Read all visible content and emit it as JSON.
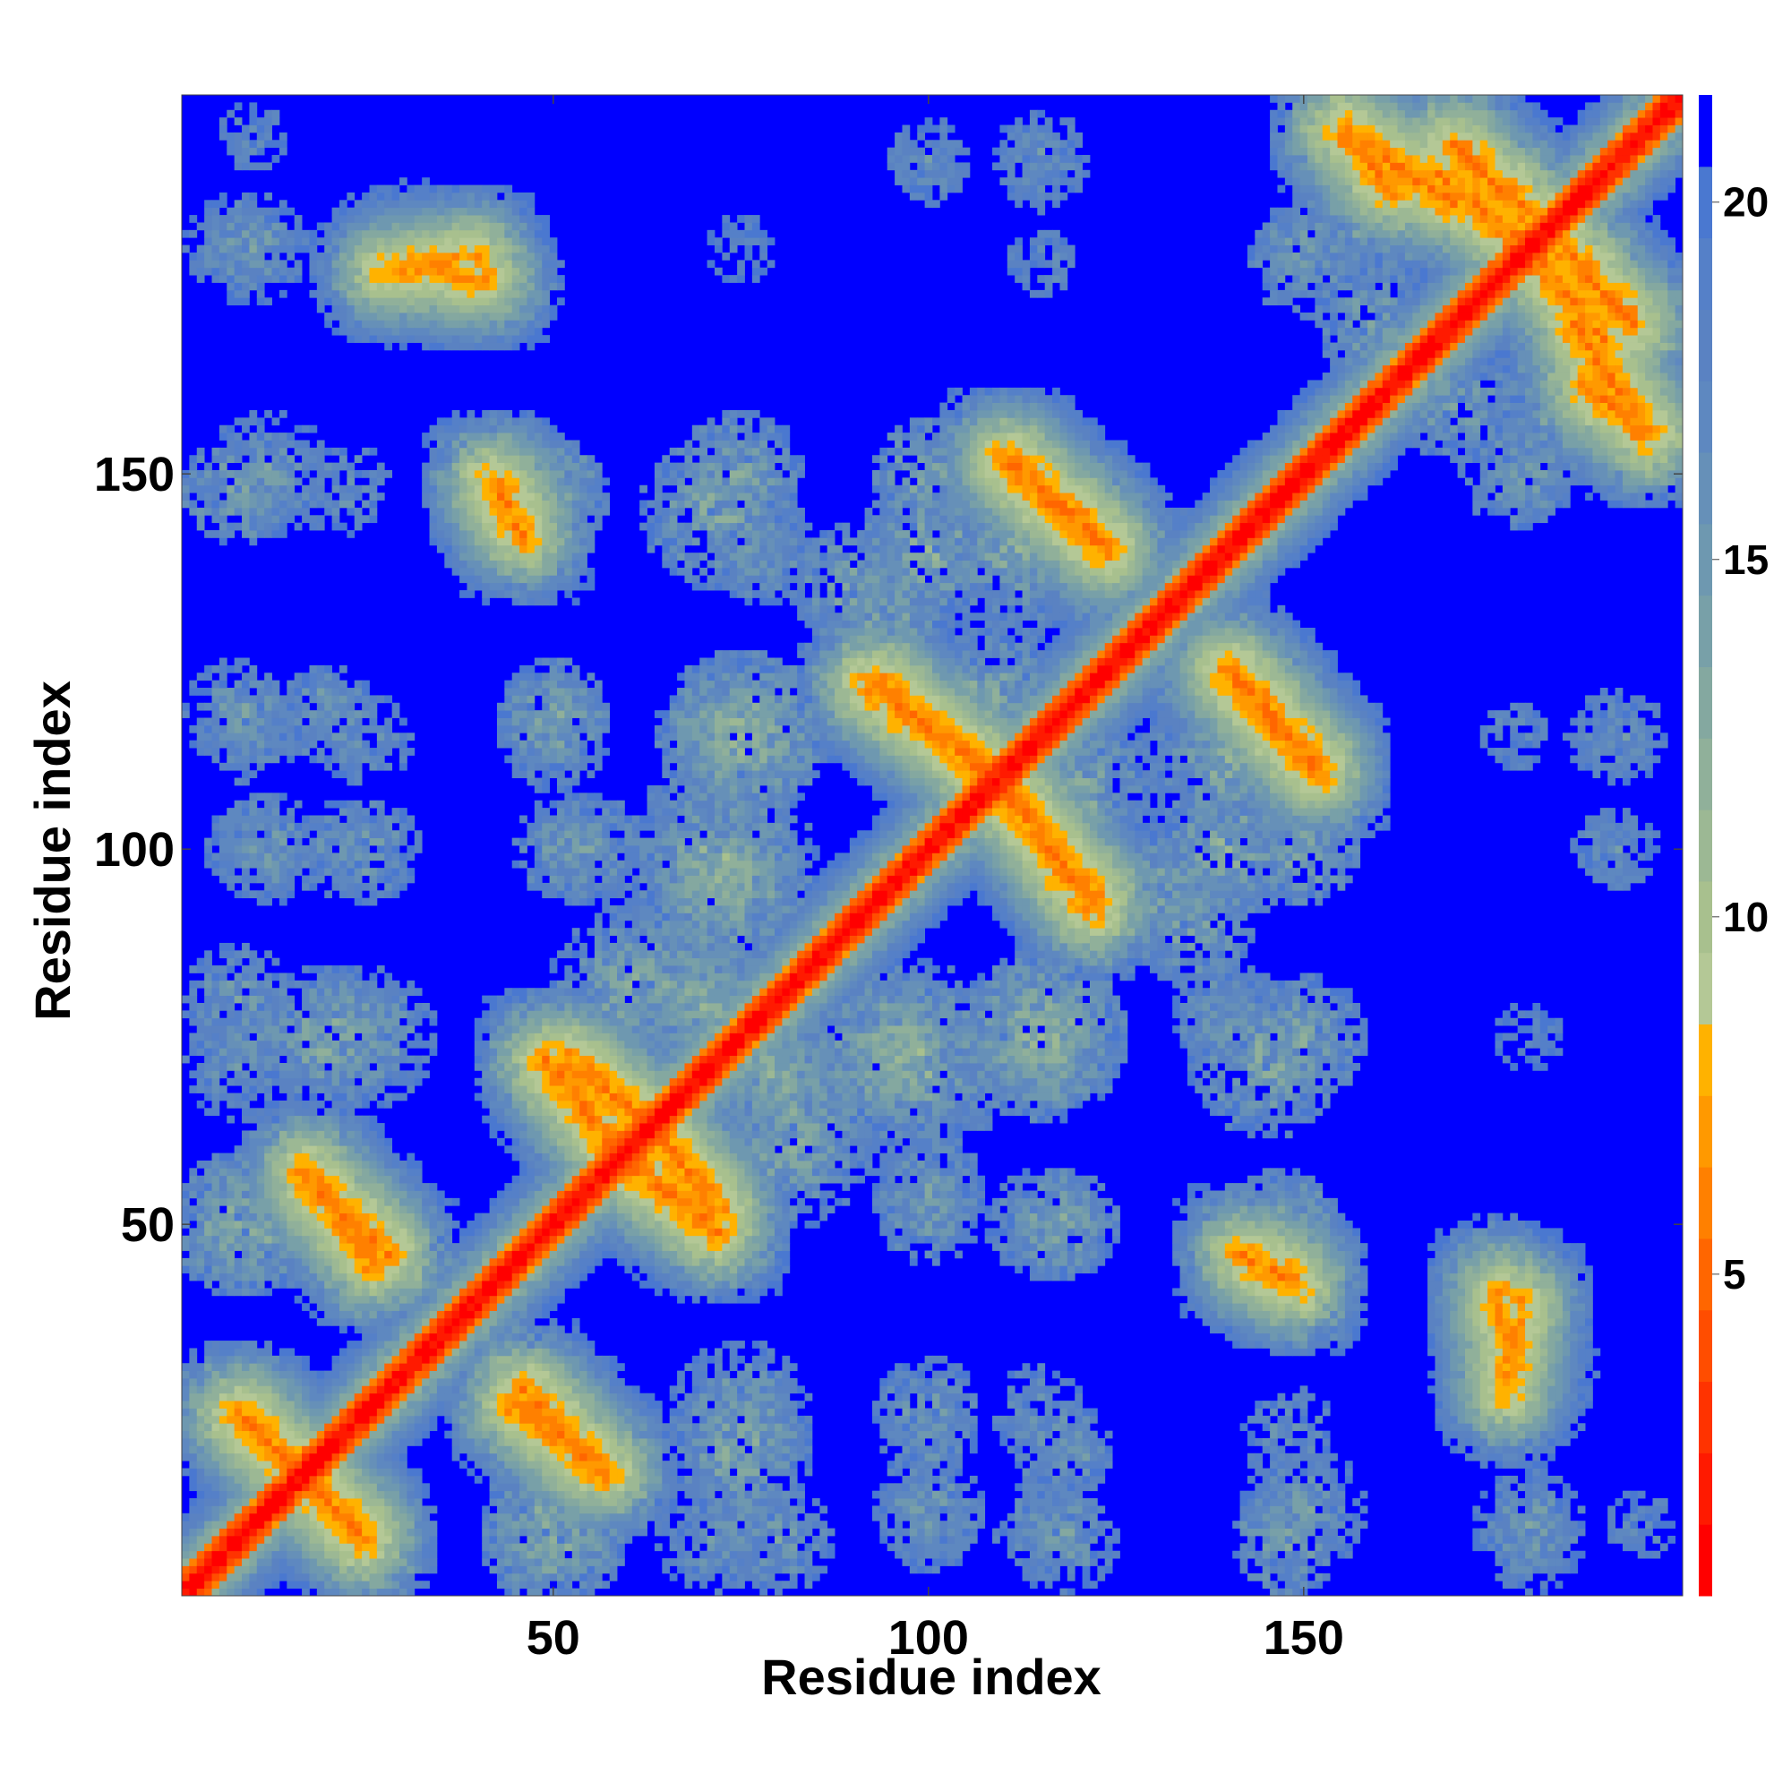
{
  "chart_data": {
    "type": "heatmap",
    "title": "",
    "xlabel": "Residue index",
    "ylabel": "Residue index",
    "n_residues": 200,
    "xlim": [
      1,
      200
    ],
    "ylim": [
      1,
      200
    ],
    "xticks": [
      50,
      100,
      150
    ],
    "yticks": [
      50,
      100,
      150
    ],
    "grid": false,
    "colorbar": {
      "placement": "right",
      "range": [
        0.5,
        21.5
      ],
      "ticks": [
        5,
        10,
        15,
        20
      ],
      "levels": [
        {
          "max": 1.5,
          "color": "#ff0000"
        },
        {
          "max": 2.5,
          "color": "#ff1a00"
        },
        {
          "max": 3.5,
          "color": "#ff3300"
        },
        {
          "max": 4.5,
          "color": "#ff4d00"
        },
        {
          "max": 5.5,
          "color": "#ff6600"
        },
        {
          "max": 6.5,
          "color": "#ff8000"
        },
        {
          "max": 7.5,
          "color": "#ff9900"
        },
        {
          "max": 8.5,
          "color": "#ffb200"
        },
        {
          "max": 9.5,
          "color": "#b4c896"
        },
        {
          "max": 10.5,
          "color": "#a8c08e"
        },
        {
          "max": 11.5,
          "color": "#9cb894"
        },
        {
          "max": 12.5,
          "color": "#90b09a"
        },
        {
          "max": 13.5,
          "color": "#84a8a0"
        },
        {
          "max": 14.5,
          "color": "#78a0a8"
        },
        {
          "max": 15.5,
          "color": "#6e98b0"
        },
        {
          "max": 16.5,
          "color": "#6690b8"
        },
        {
          "max": 17.5,
          "color": "#5e88c0"
        },
        {
          "max": 18.5,
          "color": "#5a82c2"
        },
        {
          "max": 19.5,
          "color": "#5580c8"
        },
        {
          "max": 20.5,
          "color": "#4a78d0"
        },
        {
          "max": 21.5,
          "color": "#0000ff"
        }
      ]
    },
    "background_color": "#0000ff",
    "values_description_source": "pairwise residue distance map (symmetric)",
    "diagonal": {
      "from": 1,
      "to": 200,
      "value": 1
    },
    "contact_segments": [
      {
        "i1": 8,
        "j1": 25,
        "i2": 24,
        "j2": 9,
        "value": 6
      },
      {
        "i1": 45,
        "j1": 26,
        "i2": 57,
        "j2": 17,
        "value": 6
      },
      {
        "i1": 18,
        "j1": 55,
        "i2": 28,
        "j2": 46,
        "value": 6
      },
      {
        "i1": 27,
        "j1": 177,
        "i2": 40,
        "j2": 179,
        "value": 7
      },
      {
        "i1": 52,
        "j1": 72,
        "i2": 62,
        "j2": 64,
        "value": 6
      },
      {
        "i1": 60,
        "j1": 58,
        "i2": 72,
        "j2": 49,
        "value": 6
      },
      {
        "i1": 92,
        "j1": 122,
        "i2": 110,
        "j2": 109,
        "value": 6
      },
      {
        "i1": 110,
        "j1": 107,
        "i2": 122,
        "j2": 94,
        "value": 6
      },
      {
        "i1": 110,
        "j1": 152,
        "i2": 123,
        "j2": 140,
        "value": 6
      },
      {
        "i1": 140,
        "j1": 124,
        "i2": 152,
        "j2": 111,
        "value": 6
      },
      {
        "i1": 158,
        "j1": 194,
        "i2": 170,
        "j2": 186,
        "value": 6
      },
      {
        "i1": 168,
        "j1": 190,
        "i2": 182,
        "j2": 178,
        "value": 6
      },
      {
        "i1": 182,
        "j1": 183,
        "i2": 194,
        "j2": 170,
        "value": 6
      },
      {
        "i1": 188,
        "j1": 162,
        "i2": 196,
        "j2": 155,
        "value": 6
      },
      {
        "i1": 176,
        "j1": 42,
        "i2": 177,
        "j2": 30,
        "value": 7
      },
      {
        "i1": 42,
        "j1": 149,
        "i2": 46,
        "j2": 142,
        "value": 6
      }
    ],
    "patches": [
      {
        "i": 8,
        "j": 148,
        "r": 6,
        "value": 14
      },
      {
        "i": 22,
        "j": 148,
        "r": 5,
        "value": 16
      },
      {
        "i": 50,
        "j": 147,
        "r": 6,
        "value": 14
      },
      {
        "i": 72,
        "j": 145,
        "r": 9,
        "value": 13
      },
      {
        "i": 8,
        "j": 118,
        "r": 6,
        "value": 15
      },
      {
        "i": 20,
        "j": 118,
        "r": 5,
        "value": 15
      },
      {
        "i": 50,
        "j": 118,
        "r": 6,
        "value": 14
      },
      {
        "i": 75,
        "j": 115,
        "r": 10,
        "value": 12
      },
      {
        "i": 12,
        "j": 100,
        "r": 6,
        "value": 15
      },
      {
        "i": 22,
        "j": 100,
        "r": 5,
        "value": 16
      },
      {
        "i": 52,
        "j": 100,
        "r": 6,
        "value": 15
      },
      {
        "i": 73,
        "j": 95,
        "r": 10,
        "value": 12
      },
      {
        "i": 8,
        "j": 80,
        "r": 6,
        "value": 15
      },
      {
        "i": 20,
        "j": 75,
        "r": 8,
        "value": 13
      },
      {
        "i": 8,
        "j": 50,
        "r": 8,
        "value": 13
      },
      {
        "i": 98,
        "j": 72,
        "r": 12,
        "value": 12
      },
      {
        "i": 115,
        "j": 75,
        "r": 9,
        "value": 12
      },
      {
        "i": 100,
        "j": 55,
        "r": 6,
        "value": 15
      },
      {
        "i": 115,
        "j": 50,
        "r": 6,
        "value": 15
      },
      {
        "i": 100,
        "j": 25,
        "r": 6,
        "value": 15
      },
      {
        "i": 115,
        "j": 25,
        "r": 5,
        "value": 16
      },
      {
        "i": 115,
        "j": 10,
        "r": 5,
        "value": 16
      },
      {
        "i": 100,
        "j": 10,
        "r": 5,
        "value": 16
      },
      {
        "i": 75,
        "j": 25,
        "r": 8,
        "value": 14
      },
      {
        "i": 72,
        "j": 8,
        "r": 7,
        "value": 15
      },
      {
        "i": 50,
        "j": 10,
        "r": 8,
        "value": 13
      },
      {
        "i": 150,
        "j": 75,
        "r": 7,
        "value": 14
      },
      {
        "i": 148,
        "j": 48,
        "r": 7,
        "value": 15
      },
      {
        "i": 150,
        "j": 12,
        "r": 7,
        "value": 15
      },
      {
        "i": 178,
        "j": 30,
        "r": 10,
        "value": 14
      },
      {
        "i": 180,
        "j": 8,
        "r": 6,
        "value": 16
      },
      {
        "i": 195,
        "j": 10,
        "r": 3,
        "value": 17
      },
      {
        "i": 190,
        "j": 115,
        "r": 4,
        "value": 17
      },
      {
        "i": 178,
        "j": 115,
        "r": 3,
        "value": 17
      },
      {
        "i": 190,
        "j": 100,
        "r": 3,
        "value": 17
      },
      {
        "i": 180,
        "j": 75,
        "r": 3,
        "value": 18
      },
      {
        "i": 10,
        "j": 180,
        "r": 6,
        "value": 15
      },
      {
        "i": 30,
        "j": 178,
        "r": 9,
        "value": 14
      },
      {
        "i": 100,
        "j": 192,
        "r": 4,
        "value": 16
      },
      {
        "i": 115,
        "j": 192,
        "r": 5,
        "value": 16
      },
      {
        "i": 120,
        "j": 108,
        "r": 10,
        "value": 13
      },
      {
        "i": 140,
        "j": 112,
        "r": 10,
        "value": 13
      },
      {
        "i": 150,
        "j": 100,
        "r": 6,
        "value": 14
      },
      {
        "i": 125,
        "j": 138,
        "r": 10,
        "value": 13
      },
      {
        "i": 100,
        "j": 140,
        "r": 8,
        "value": 13
      },
      {
        "i": 95,
        "j": 130,
        "r": 6,
        "value": 14
      },
      {
        "i": 150,
        "j": 178,
        "r": 6,
        "value": 15
      },
      {
        "i": 160,
        "j": 170,
        "r": 7,
        "value": 14
      },
      {
        "i": 185,
        "j": 160,
        "r": 8,
        "value": 13
      },
      {
        "i": 170,
        "j": 190,
        "r": 7,
        "value": 13
      },
      {
        "i": 180,
        "j": 150,
        "r": 5,
        "value": 15
      },
      {
        "i": 82,
        "j": 65,
        "r": 9,
        "value": 13
      },
      {
        "i": 60,
        "j": 82,
        "r": 9,
        "value": 13
      },
      {
        "i": 70,
        "j": 80,
        "r": 7,
        "value": 13
      },
      {
        "i": 80,
        "j": 72,
        "r": 6,
        "value": 14
      },
      {
        "i": 135,
        "j": 90,
        "r": 7,
        "value": 14
      },
      {
        "i": 140,
        "j": 78,
        "r": 6,
        "value": 15
      }
    ],
    "noise_cutoff": 20.5
  }
}
